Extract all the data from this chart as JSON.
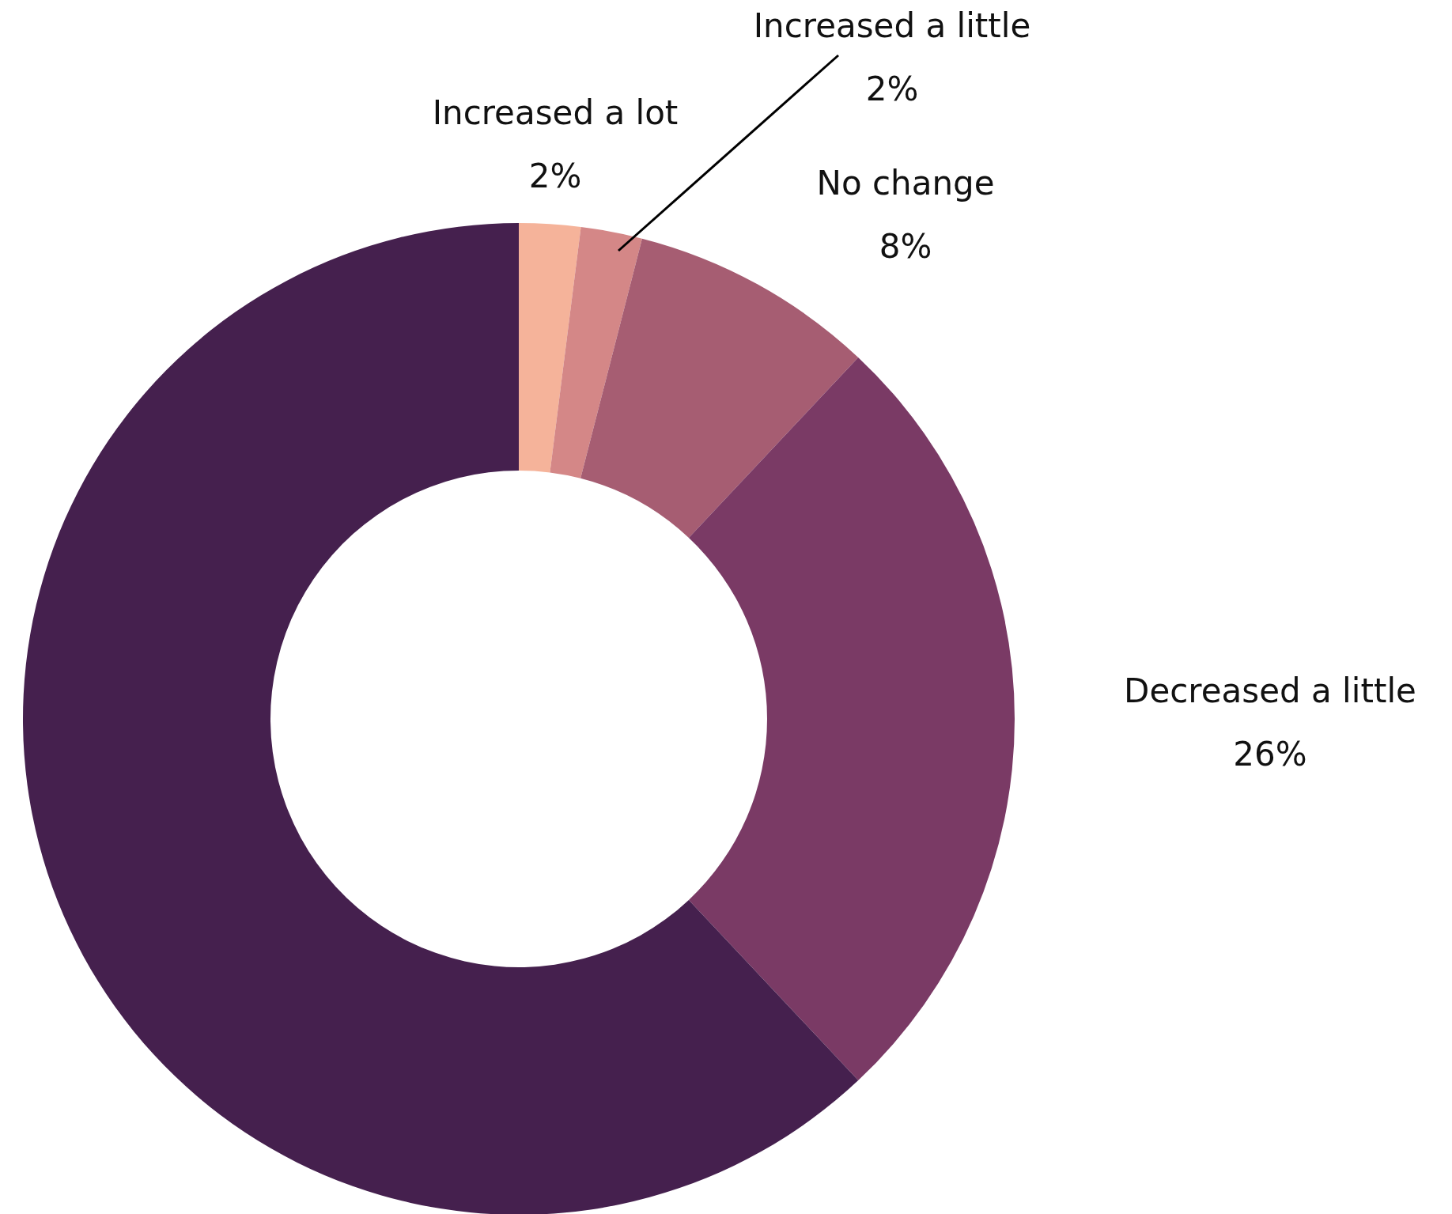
{
  "chart_data": {
    "type": "donut",
    "categories": [
      "Increased a lot",
      "Increased a little",
      "No change",
      "Decreased a little",
      null
    ],
    "values": [
      2,
      2,
      8,
      26,
      62
    ],
    "value_labels": [
      "2%",
      "2%",
      "8%",
      "26%",
      null
    ],
    "colors": [
      "#f5b39a",
      "#d48787",
      "#a65d72",
      "#7a3a65",
      "#45204e"
    ]
  }
}
